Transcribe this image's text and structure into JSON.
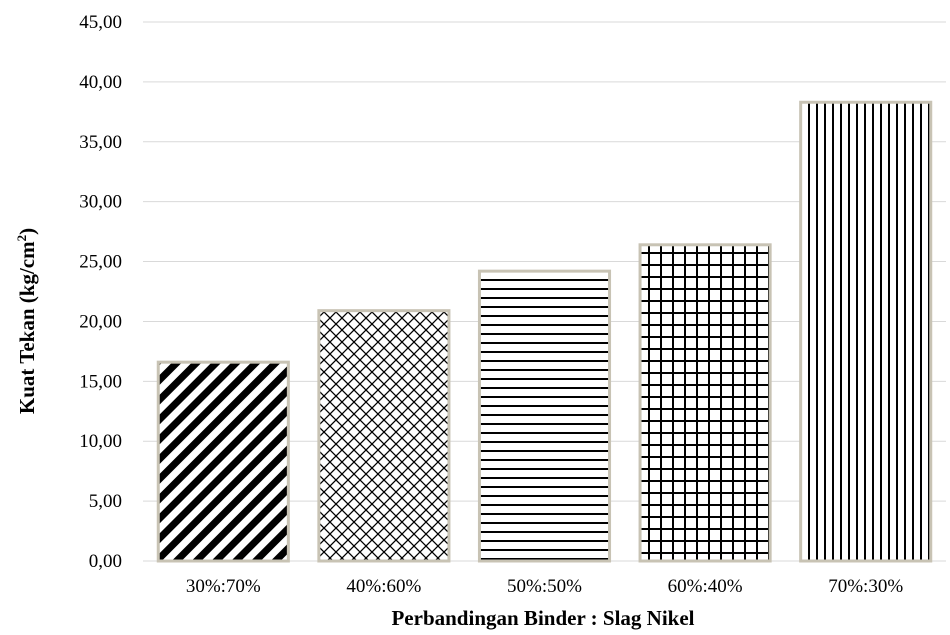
{
  "chart_data": {
    "type": "bar",
    "title": "",
    "xlabel": "Perbandingan Binder : Slag Nikel",
    "ylabel_main": "Kuat Tekan (kg/cm",
    "ylabel_sup": "2",
    "ylabel_close": ")",
    "categories": [
      "30%:70%",
      "40%:60%",
      "50%:50%",
      "60%:40%",
      "70%:30%"
    ],
    "values": [
      16.6,
      20.9,
      24.2,
      26.4,
      38.3
    ],
    "bar_patterns": [
      "diagonal-stripes",
      "diamond-crosshatch",
      "horizontal-lines",
      "grid",
      "vertical-lines"
    ],
    "ylim": [
      0,
      45
    ],
    "yticks": [
      "0,00",
      "5,00",
      "10,00",
      "15,00",
      "20,00",
      "25,00",
      "30,00",
      "35,00",
      "40,00",
      "45,00"
    ],
    "grid": true,
    "legend": "none",
    "colors": {
      "gridline": "#d9d9d9",
      "bar_ink": "#000000",
      "bar_bg": "#ffffff",
      "bar_edge": "#c8c3b4"
    }
  }
}
